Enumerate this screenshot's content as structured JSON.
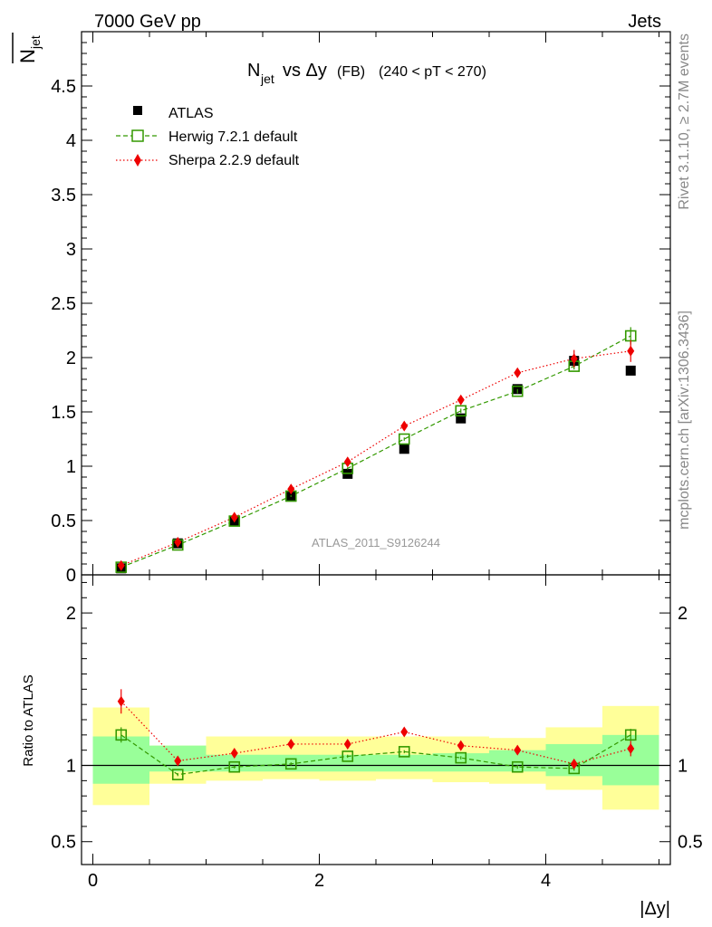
{
  "header": {
    "energy_label": "7000 GeV pp",
    "process_label": "Jets",
    "side_label_top": "Rivet 3.1.10, ≥ 2.7M events",
    "side_label_bottom": "mcplots.cern.ch [arXiv:1306.3436]",
    "analysis_id": "ATLAS_2011_S9126244"
  },
  "chart_data": {
    "type": "scatter",
    "title": {
      "n": "N",
      "n_sub": "jet",
      "vs": "vs Δy",
      "fb": "(FB)",
      "range": "(240 < pT < 270)"
    },
    "ylabel_main": {
      "n": "N",
      "sub": "jet"
    },
    "ylabel_ratio": "Ratio to ATLAS",
    "xlabel": "|Δy|",
    "xlim": [
      -0.1,
      5.1
    ],
    "ylim_main": [
      0,
      5.0
    ],
    "ylim_ratio": [
      0.35,
      2.25
    ],
    "x_ticks": [
      0,
      2,
      4
    ],
    "x_tick_labels": [
      "0",
      "2",
      "4"
    ],
    "y_ticks_main": [
      0,
      0.5,
      1,
      1.5,
      2,
      2.5,
      3,
      3.5,
      4,
      4.5
    ],
    "y_tick_labels_main": [
      "0",
      "0.5",
      "1",
      "1.5",
      "2",
      "2.5",
      "3",
      "3.5",
      "4",
      "4.5"
    ],
    "y_ticks_ratio": [
      0.5,
      1,
      2
    ],
    "y_tick_labels_ratio": [
      "0.5",
      "1",
      "2"
    ],
    "x": [
      0.25,
      0.75,
      1.25,
      1.75,
      2.25,
      2.75,
      3.25,
      3.75,
      4.25,
      4.75
    ],
    "bin_edges": [
      0,
      0.5,
      1,
      1.5,
      2,
      2.5,
      3,
      3.5,
      4,
      4.5,
      5
    ],
    "series": [
      {
        "name": "ATLAS",
        "color": "#000000",
        "marker": "filled-square",
        "values": [
          0.06,
          0.29,
          0.5,
          0.72,
          0.93,
          1.16,
          1.44,
          1.71,
          1.97,
          1.88
        ]
      },
      {
        "name": "Herwig 7.2.1 default",
        "color": "#339900",
        "marker": "open-square",
        "line": "dashed",
        "values": [
          0.07,
          0.275,
          0.495,
          0.725,
          0.98,
          1.25,
          1.51,
          1.69,
          1.92,
          2.2
        ],
        "errors": [
          0.003,
          0.005,
          0.006,
          0.008,
          0.01,
          0.015,
          0.02,
          0.02,
          0.03,
          0.08
        ],
        "ratio": [
          1.2,
          0.94,
          0.99,
          1.01,
          1.06,
          1.09,
          1.05,
          0.99,
          0.98,
          1.2
        ],
        "ratio_errors": [
          0.05,
          0.01,
          0.01,
          0.01,
          0.01,
          0.01,
          0.01,
          0.012,
          0.015,
          0.04
        ]
      },
      {
        "name": "Sherpa 2.2.9 default",
        "color": "#ee0000",
        "marker": "diamond",
        "line": "dotted",
        "values": [
          0.085,
          0.3,
          0.53,
          0.79,
          1.04,
          1.37,
          1.61,
          1.86,
          1.99,
          2.06
        ],
        "errors": [
          0.005,
          0.006,
          0.007,
          0.01,
          0.015,
          0.02,
          0.03,
          0.04,
          0.08,
          0.1
        ],
        "ratio": [
          1.42,
          1.03,
          1.08,
          1.14,
          1.14,
          1.22,
          1.13,
          1.1,
          1.01,
          1.11
        ],
        "ratio_errors": [
          0.08,
          0.01,
          0.01,
          0.015,
          0.015,
          0.015,
          0.015,
          0.02,
          0.03,
          0.05
        ]
      }
    ],
    "uncertainty_bands": {
      "stat_color": "#99ff99",
      "total_color": "#ffff99",
      "stat_low": [
        0.88,
        0.96,
        0.96,
        0.96,
        0.96,
        0.96,
        0.96,
        0.96,
        0.93,
        0.87
      ],
      "stat_high": [
        1.19,
        1.13,
        1.07,
        1.07,
        1.07,
        1.07,
        1.08,
        1.1,
        1.14,
        1.2
      ],
      "total_low": [
        0.74,
        0.88,
        0.9,
        0.91,
        0.9,
        0.91,
        0.89,
        0.88,
        0.84,
        0.71
      ],
      "total_high": [
        1.38,
        1.13,
        1.19,
        1.19,
        1.19,
        1.19,
        1.19,
        1.18,
        1.25,
        1.39
      ]
    }
  }
}
